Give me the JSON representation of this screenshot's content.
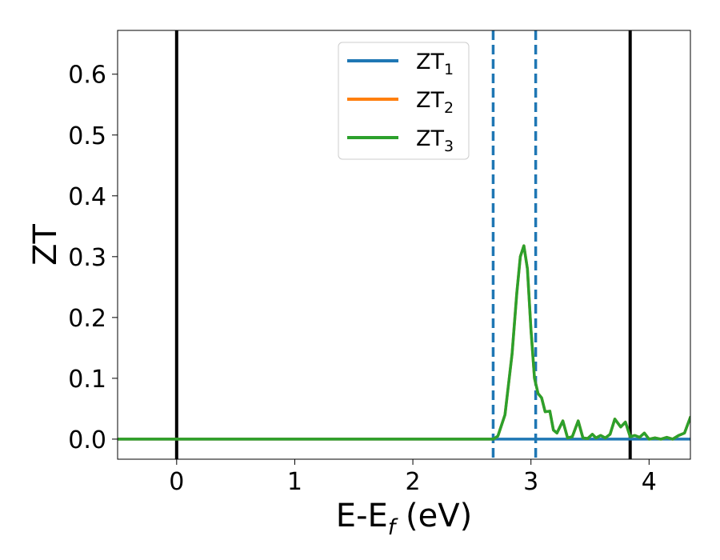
{
  "chart_data": {
    "type": "line",
    "xlabel": {
      "main": "E-E",
      "sub": "f",
      "unit": " (eV)"
    },
    "ylabel": "ZT",
    "xlim": [
      -0.5,
      4.35
    ],
    "ylim": [
      -0.033,
      0.672
    ],
    "x_ticks": [
      0,
      1,
      2,
      3,
      4
    ],
    "x_tick_labels": [
      "0",
      "1",
      "2",
      "3",
      "4"
    ],
    "y_ticks": [
      0.0,
      0.1,
      0.2,
      0.3,
      0.4,
      0.5,
      0.6
    ],
    "y_tick_labels": [
      "0.0",
      "0.1",
      "0.2",
      "0.3",
      "0.4",
      "0.5",
      "0.6"
    ],
    "grid": false,
    "legend_position": "top-center",
    "series": [
      {
        "name": "ZT",
        "sub": "1",
        "color": "#1f77b4",
        "x": [
          -0.5,
          4.35
        ],
        "y": [
          0.0,
          0.0
        ]
      },
      {
        "name": "ZT",
        "sub": "2",
        "color": "#ff7f0e",
        "x": [
          -0.5,
          2.68,
          2.72,
          2.78,
          2.84,
          2.88,
          2.91,
          2.94,
          2.97,
          3.0,
          3.03,
          3.06,
          3.09,
          3.12,
          3.16,
          3.19,
          3.22,
          3.27,
          3.31,
          3.35,
          3.4,
          3.44,
          3.48,
          3.52,
          3.55,
          3.59,
          3.63,
          3.67,
          3.71,
          3.76,
          3.8,
          3.84,
          3.88,
          3.92,
          3.96,
          4.0,
          4.05,
          4.1,
          4.15,
          4.2,
          4.25,
          4.3,
          4.35
        ],
        "y": [
          0.0,
          0.0,
          0.005,
          0.04,
          0.14,
          0.24,
          0.3,
          0.318,
          0.28,
          0.18,
          0.1,
          0.075,
          0.068,
          0.045,
          0.046,
          0.015,
          0.01,
          0.03,
          0.002,
          0.004,
          0.03,
          0.002,
          0.001,
          0.008,
          0.002,
          0.006,
          0.002,
          0.008,
          0.033,
          0.02,
          0.028,
          0.004,
          0.006,
          0.003,
          0.01,
          0.0,
          0.002,
          0.0,
          0.003,
          0.0,
          0.006,
          0.01,
          0.036
        ]
      },
      {
        "name": "ZT",
        "sub": "3",
        "color": "#2ca02c",
        "x": [
          -0.5,
          2.68,
          2.72,
          2.78,
          2.84,
          2.88,
          2.91,
          2.94,
          2.97,
          3.0,
          3.03,
          3.06,
          3.09,
          3.12,
          3.16,
          3.19,
          3.22,
          3.27,
          3.31,
          3.35,
          3.4,
          3.44,
          3.48,
          3.52,
          3.55,
          3.59,
          3.63,
          3.67,
          3.71,
          3.76,
          3.8,
          3.84,
          3.88,
          3.92,
          3.96,
          4.0,
          4.05,
          4.1,
          4.15,
          4.2,
          4.25,
          4.3,
          4.35
        ],
        "y": [
          0.0,
          0.0,
          0.005,
          0.04,
          0.14,
          0.24,
          0.3,
          0.318,
          0.28,
          0.18,
          0.1,
          0.075,
          0.068,
          0.045,
          0.046,
          0.015,
          0.01,
          0.03,
          0.002,
          0.004,
          0.03,
          0.002,
          0.001,
          0.008,
          0.002,
          0.006,
          0.002,
          0.008,
          0.033,
          0.02,
          0.028,
          0.004,
          0.006,
          0.003,
          0.01,
          0.0,
          0.002,
          0.0,
          0.003,
          0.0,
          0.006,
          0.01,
          0.036
        ]
      }
    ],
    "vertical_lines": [
      {
        "x": 0.0,
        "color": "#000000",
        "style": "solid"
      },
      {
        "x": 3.84,
        "color": "#000000",
        "style": "solid"
      },
      {
        "x": 2.68,
        "color": "#1f77b4",
        "style": "dashed"
      },
      {
        "x": 3.04,
        "color": "#1f77b4",
        "style": "dashed"
      }
    ]
  }
}
